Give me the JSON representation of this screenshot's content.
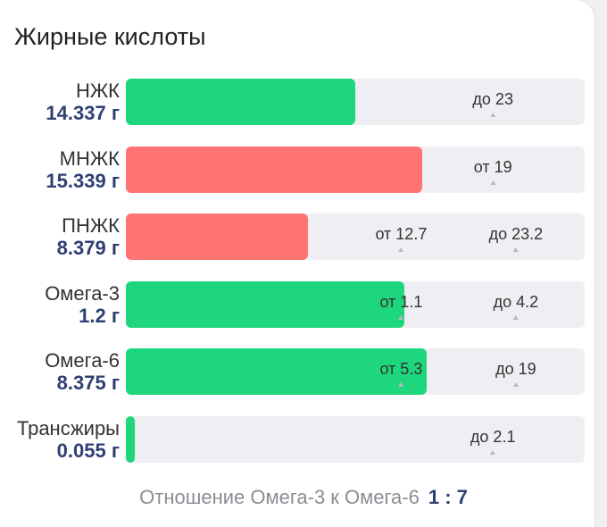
{
  "title": "Жирные кислоты",
  "rows": [
    {
      "name": "НЖК",
      "value": "14.337 г",
      "fill_fraction": 0.5,
      "color": "#1ed67b",
      "marks": [
        {
          "text": "до 23",
          "pos_fraction": 0.8
        }
      ]
    },
    {
      "name": "МНЖК",
      "value": "15.339 г",
      "fill_fraction": 0.645,
      "color": "#ff7473",
      "marks": [
        {
          "text": "от 19",
          "pos_fraction": 0.8
        }
      ]
    },
    {
      "name": "ПНЖК",
      "value": "8.379 г",
      "fill_fraction": 0.397,
      "color": "#ff7473",
      "marks": [
        {
          "text": "от 12.7",
          "pos_fraction": 0.6
        },
        {
          "text": "до 23.2",
          "pos_fraction": 0.85
        }
      ]
    },
    {
      "name": "Омега-3",
      "value": "1.2 г",
      "fill_fraction": 0.607,
      "color": "#1ed67b",
      "marks": [
        {
          "text": "от 1.1",
          "pos_fraction": 0.6
        },
        {
          "text": "до 4.2",
          "pos_fraction": 0.85
        }
      ]
    },
    {
      "name": "Омега-6",
      "value": "8.375 г",
      "fill_fraction": 0.656,
      "color": "#1ed67b",
      "marks": [
        {
          "text": "от 5.3",
          "pos_fraction": 0.6
        },
        {
          "text": "до 19",
          "pos_fraction": 0.85
        }
      ]
    },
    {
      "name": "Трансжиры",
      "value": "0.055 г",
      "fill_fraction": 0.02,
      "color": "#1ed67b",
      "marks": [
        {
          "text": "до 2.1",
          "pos_fraction": 0.8
        }
      ]
    }
  ],
  "ratio": {
    "label": "Отношение Омега-3 к Омега-6",
    "value": "1 : 7"
  }
}
